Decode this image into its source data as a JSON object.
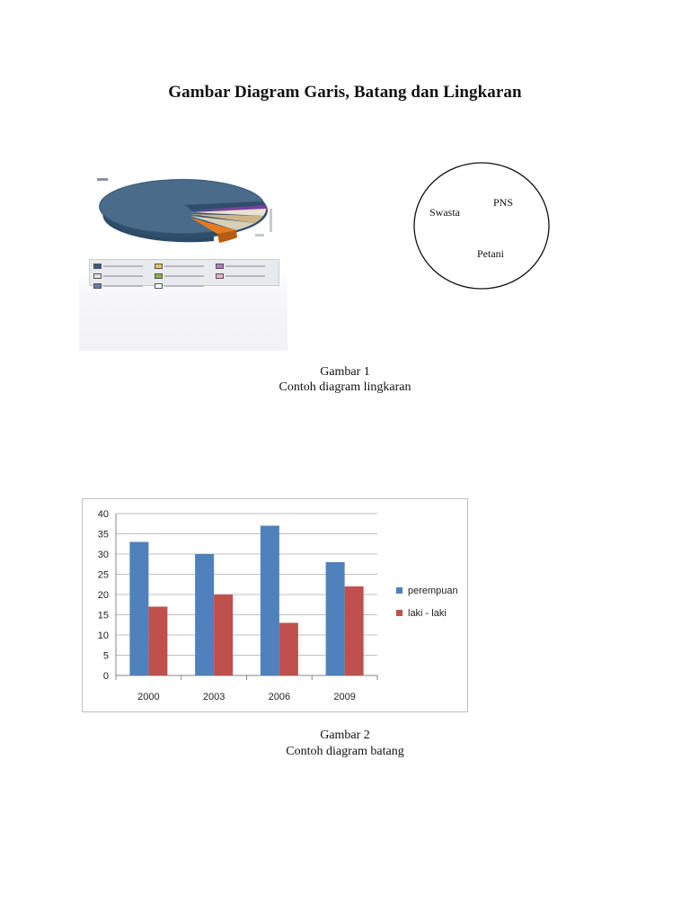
{
  "document": {
    "title": "Gambar Diagram Garis, Batang dan Lingkaran"
  },
  "figure1": {
    "circle_labels": {
      "pns": "PNS",
      "swasta": "Swasta",
      "petani": "Petani"
    },
    "caption_number": "Gambar 1",
    "caption_text": "Contoh diagram lingkaran"
  },
  "figure2": {
    "caption_number": "Gambar 2",
    "caption_text": "Contoh diagram batang"
  },
  "chart_data": {
    "type": "bar",
    "categories": [
      "2000",
      "2003",
      "2006",
      "2009"
    ],
    "series": [
      {
        "name": "perempuan",
        "values": [
          33,
          30,
          37,
          28
        ],
        "color": "#4f81bd"
      },
      {
        "name": "laki - laki",
        "values": [
          17,
          20,
          13,
          22
        ],
        "color": "#c0504d"
      }
    ],
    "ylim": [
      0,
      40
    ],
    "yticks": [
      0,
      5,
      10,
      15,
      20,
      25,
      30,
      35,
      40
    ],
    "grid": true,
    "legend": "right"
  }
}
